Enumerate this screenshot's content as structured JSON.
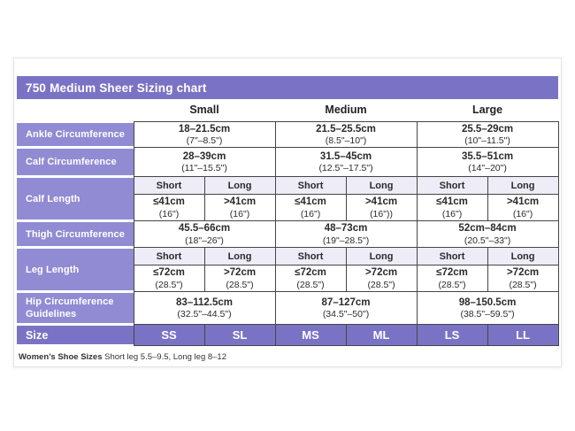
{
  "title": "750 Medium Sheer Sizing chart",
  "columns": [
    "Small",
    "Medium",
    "Large"
  ],
  "sub_headers": [
    "Short",
    "Long"
  ],
  "rows": {
    "ankle": {
      "label": "Ankle Circumference",
      "cells": [
        {
          "cm": "18–21.5cm",
          "inches": "(7\"–8.5\")"
        },
        {
          "cm": "21.5–25.5cm",
          "inches": "(8.5\"–10\")"
        },
        {
          "cm": "25.5–29cm",
          "inches": "(10\"–11.5\")"
        }
      ]
    },
    "calf_circumference": {
      "label": "Calf Circumference",
      "cells": [
        {
          "cm": "28–39cm",
          "inches": "(11\"–15.5\")"
        },
        {
          "cm": "31.5–45cm",
          "inches": "(12.5\"–17.5\")"
        },
        {
          "cm": "35.5–51cm",
          "inches": "(14\"–20\")"
        }
      ]
    },
    "calf_length": {
      "label": "Calf Length",
      "cells": [
        {
          "cm": "≤41cm",
          "inches": "(16\")"
        },
        {
          "cm": ">41cm",
          "inches": "(16\")"
        },
        {
          "cm": "≤41cm",
          "inches": "(16\")"
        },
        {
          "cm": ">41cm",
          "inches": "(16\"))"
        },
        {
          "cm": "≤41cm",
          "inches": "(16\")"
        },
        {
          "cm": ">41cm",
          "inches": "(16\")"
        }
      ]
    },
    "thigh": {
      "label": "Thigh Circumference",
      "cells": [
        {
          "cm": "45.5–66cm",
          "inches": "(18\"–26\")"
        },
        {
          "cm": "48–73cm",
          "inches": "(19\"–28.5\")"
        },
        {
          "cm": "52cm–84cm",
          "inches": "(20.5\"–33\")"
        }
      ]
    },
    "leg_length": {
      "label": "Leg Length",
      "cells": [
        {
          "cm": "≤72cm",
          "inches": "(28.5\")"
        },
        {
          "cm": ">72cm",
          "inches": "(28.5\")"
        },
        {
          "cm": "≤72cm",
          "inches": "(28.5\")"
        },
        {
          "cm": ">72cm",
          "inches": "(28.5\")"
        },
        {
          "cm": "≤72cm",
          "inches": "(28.5\")"
        },
        {
          "cm": ">72cm",
          "inches": "(28.5\")"
        }
      ]
    },
    "hip": {
      "label": "Hip Circumference Guidelines",
      "cells": [
        {
          "cm": "83–112.5cm",
          "inches": "(32.5\"–44.5\")"
        },
        {
          "cm": "87–127cm",
          "inches": "(34.5\"–50\")"
        },
        {
          "cm": "98–150.5cm",
          "inches": "(38.5\"–59.5\")"
        }
      ]
    },
    "size": {
      "label": "Size",
      "cells": [
        "SS",
        "SL",
        "MS",
        "ML",
        "LS",
        "LL"
      ]
    }
  },
  "footer": {
    "bold": "Women’s Shoe Sizes",
    "text": "Short leg 5.5–9.5, Long leg 8–12"
  },
  "colors": {
    "header_purple": "#7a73c5",
    "label_purple": "#918bd3",
    "subheader_lavender": "#edecf7",
    "border": "#454545"
  }
}
